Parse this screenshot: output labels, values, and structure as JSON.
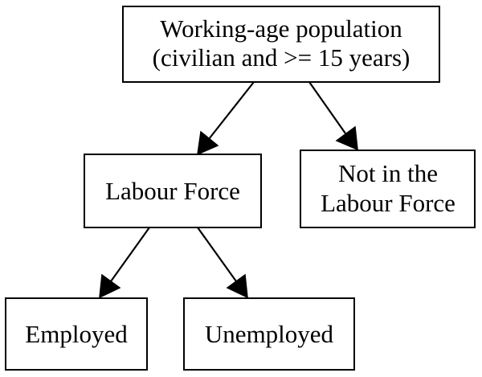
{
  "nodes": {
    "working_age": {
      "line1": "Working-age population",
      "line2": "(civilian and >= 15 years)"
    },
    "labour_force": {
      "label": "Labour Force"
    },
    "not_in_labour_force": {
      "line1": "Not in the",
      "line2": "Labour Force"
    },
    "employed": {
      "label": "Employed"
    },
    "unemployed": {
      "label": "Unemployed"
    }
  },
  "edges": [
    {
      "from": "working_age",
      "to": "labour_force"
    },
    {
      "from": "working_age",
      "to": "not_in_labour_force"
    },
    {
      "from": "labour_force",
      "to": "employed"
    },
    {
      "from": "labour_force",
      "to": "unemployed"
    }
  ]
}
